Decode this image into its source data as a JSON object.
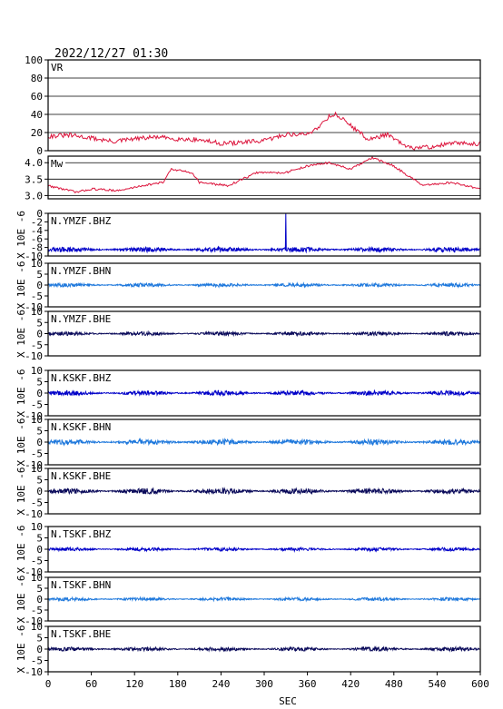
{
  "header": {
    "timestamp": "2022/12/27 01:30"
  },
  "x_axis": {
    "label": "SEC",
    "ticks": [
      "0",
      "60",
      "120",
      "180",
      "240",
      "300",
      "360",
      "420",
      "480",
      "540",
      "600"
    ]
  },
  "colors": {
    "axes": "#000000",
    "vr_mw": "#dc143c",
    "bhz": "#0000c8",
    "bhn": "#1e78dc",
    "bhe": "#0a0a5a"
  },
  "chart_data": [
    {
      "type": "line",
      "label": "VR",
      "ylim": [
        0,
        100
      ],
      "yticks": [
        "0",
        "20",
        "40",
        "60",
        "80",
        "100"
      ],
      "grid": true,
      "x": [
        0,
        30,
        60,
        90,
        120,
        150,
        180,
        210,
        240,
        270,
        300,
        330,
        360,
        375,
        390,
        400,
        420,
        445,
        470,
        500,
        530,
        560,
        600
      ],
      "values": [
        16,
        17,
        14,
        10,
        13,
        15,
        13,
        12,
        8,
        9,
        11,
        18,
        18,
        26,
        38,
        40,
        28,
        12,
        18,
        3,
        4,
        8,
        8
      ]
    },
    {
      "type": "line",
      "label": "Mw",
      "ylim": [
        2.9,
        4.2
      ],
      "yticks": [
        "3.0",
        "3.5",
        "4.0"
      ],
      "grid": true,
      "x": [
        0,
        40,
        60,
        100,
        130,
        160,
        170,
        200,
        210,
        250,
        290,
        330,
        360,
        390,
        420,
        450,
        480,
        520,
        560,
        600
      ],
      "values": [
        3.3,
        3.1,
        3.2,
        3.15,
        3.3,
        3.4,
        3.8,
        3.7,
        3.4,
        3.3,
        3.7,
        3.7,
        3.9,
        4.0,
        3.8,
        4.15,
        3.9,
        3.3,
        3.4,
        3.2
      ]
    },
    {
      "type": "line",
      "label": "N.YMZF.BHZ",
      "ylim": [
        -10,
        0
      ],
      "yticks": [
        "-10",
        "-8",
        "-6",
        "-4",
        "-2",
        "0"
      ],
      "ylabel": "X 10E -6",
      "grid": false,
      "baseline": -8.5,
      "amplitude": 0.6,
      "spike_at": 330,
      "spike_to": 0
    },
    {
      "type": "line",
      "label": "N.YMZF.BHN",
      "ylim": [
        -10,
        10
      ],
      "yticks": [
        "-10",
        "-5",
        "0",
        "5",
        "10"
      ],
      "ylabel": "X 10E -6",
      "grid": false,
      "baseline": 0,
      "amplitude": 0.9
    },
    {
      "type": "line",
      "label": "N.YMZF.BHE",
      "ylim": [
        -10,
        10
      ],
      "yticks": [
        "-10",
        "-5",
        "0",
        "5",
        "10"
      ],
      "ylabel": "X 10E -6",
      "grid": false,
      "baseline": 0,
      "amplitude": 0.9
    },
    {
      "type": "line",
      "label": "N.KSKF.BHZ",
      "ylim": [
        -10,
        10
      ],
      "yticks": [
        "-10",
        "-5",
        "0",
        "5",
        "10"
      ],
      "ylabel": "X 10E -6",
      "grid": false,
      "baseline": 0,
      "amplitude": 1.1
    },
    {
      "type": "line",
      "label": "N.KSKF.BHN",
      "ylim": [
        -10,
        10
      ],
      "yticks": [
        "-10",
        "-5",
        "0",
        "5",
        "10"
      ],
      "ylabel": "X 10E -6",
      "grid": false,
      "baseline": 0,
      "amplitude": 1.3
    },
    {
      "type": "line",
      "label": "N.KSKF.BHE",
      "ylim": [
        -10,
        10
      ],
      "yticks": [
        "-10",
        "-5",
        "0",
        "5",
        "10"
      ],
      "ylabel": "X 10E -6",
      "grid": false,
      "baseline": 0,
      "amplitude": 1.3
    },
    {
      "type": "line",
      "label": "N.TSKF.BHZ",
      "ylim": [
        -10,
        10
      ],
      "yticks": [
        "-10",
        "-5",
        "0",
        "5",
        "10"
      ],
      "ylabel": "X 10E -6",
      "grid": false,
      "baseline": 0,
      "amplitude": 0.8
    },
    {
      "type": "line",
      "label": "N.TSKF.BHN",
      "ylim": [
        -10,
        10
      ],
      "yticks": [
        "-10",
        "-5",
        "0",
        "5",
        "10"
      ],
      "ylabel": "X 10E -6",
      "grid": false,
      "baseline": 0,
      "amplitude": 0.8
    },
    {
      "type": "line",
      "label": "N.TSKF.BHE",
      "ylim": [
        -10,
        10
      ],
      "yticks": [
        "-10",
        "-5",
        "0",
        "5",
        "10"
      ],
      "ylabel": "X 10E -6",
      "grid": false,
      "baseline": 0,
      "amplitude": 0.9
    }
  ]
}
